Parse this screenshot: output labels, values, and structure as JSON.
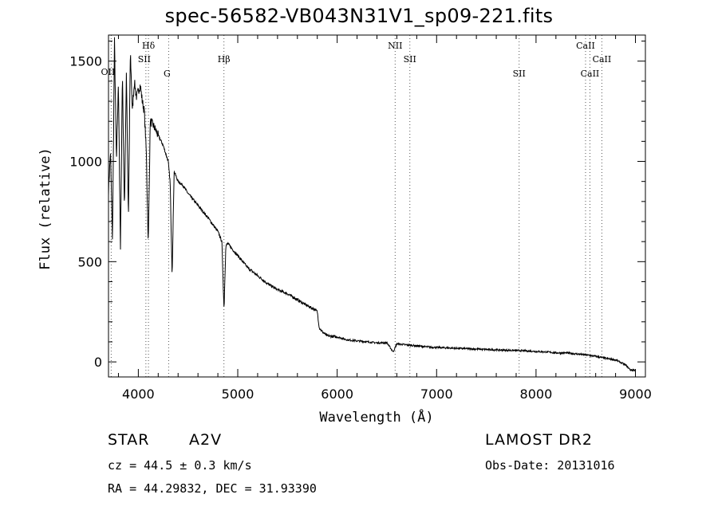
{
  "chart_data": {
    "type": "line",
    "title": "spec-56582-VB043N31V1_sp09-221.fits",
    "xlabel": "Wavelength (Å)",
    "ylabel": "Flux (relative)",
    "xlim": [
      3700,
      9100
    ],
    "ylim": [
      -75,
      1630
    ],
    "xticks": [
      4000,
      5000,
      6000,
      7000,
      8000,
      9000
    ],
    "yticks": [
      0,
      500,
      1000,
      1500
    ],
    "series": [
      {
        "x": [
          3700,
          3720,
          3740,
          3760,
          3780,
          3800,
          3820,
          3840,
          3860,
          3880,
          3900,
          3920,
          3940,
          3960,
          3980,
          4000,
          4020,
          4040,
          4060,
          4080,
          4100,
          4120,
          4150,
          4200,
          4250,
          4300,
          4320,
          4340,
          4360,
          4400,
          4450,
          4500,
          4600,
          4700,
          4800,
          4840,
          4862,
          4880,
          4900,
          5000,
          5100,
          5200,
          5300,
          5400,
          5500,
          5600,
          5700,
          5780,
          5800,
          5820,
          5850,
          5900,
          6000,
          6100,
          6200,
          6300,
          6400,
          6500,
          6563,
          6600,
          6700,
          6800,
          6900,
          7000,
          7100,
          7200,
          7300,
          7400,
          7500,
          7600,
          7700,
          7800,
          7900,
          8000,
          8100,
          8200,
          8300,
          8400,
          8500,
          8600,
          8700,
          8800,
          8900,
          8950,
          9000
        ],
        "values": [
          850,
          1050,
          600,
          1600,
          1000,
          1400,
          550,
          1450,
          750,
          1450,
          700,
          1550,
          1250,
          1400,
          1320,
          1350,
          1380,
          1300,
          1250,
          1050,
          580,
          1200,
          1180,
          1130,
          1080,
          1000,
          900,
          430,
          950,
          900,
          880,
          840,
          780,
          720,
          650,
          600,
          260,
          580,
          590,
          530,
          470,
          430,
          390,
          360,
          340,
          310,
          280,
          260,
          250,
          170,
          150,
          130,
          125,
          110,
          105,
          100,
          95,
          95,
          50,
          90,
          85,
          80,
          75,
          72,
          70,
          68,
          66,
          64,
          62,
          60,
          58,
          57,
          55,
          52,
          50,
          45,
          45,
          40,
          35,
          28,
          18,
          10,
          -15,
          -40,
          -40
        ]
      }
    ],
    "lines": [
      {
        "label": "OII",
        "x": 3727
      },
      {
        "label": "Hδ",
        "x": 4102
      },
      {
        "label": "SII",
        "x": 4076
      },
      {
        "label": "G",
        "x": 4305
      },
      {
        "label": "Hβ",
        "x": 4861
      },
      {
        "label": "NII",
        "x": 6583
      },
      {
        "label": "SII",
        "x": 6731
      },
      {
        "label": "SII",
        "x": 7830
      },
      {
        "label": "CaII",
        "x": 8498
      },
      {
        "label": "CaII",
        "x": 8542
      },
      {
        "label": "CaII",
        "x": 8662
      }
    ]
  },
  "info": {
    "obj_class": "STAR",
    "subclass": "A2V",
    "survey": "LAMOST DR2",
    "cz": "cz = 44.5 ± 0.3 km/s",
    "obs_date": "Obs-Date: 20131016",
    "coords": "RA =  44.29832, DEC =  31.93390"
  }
}
